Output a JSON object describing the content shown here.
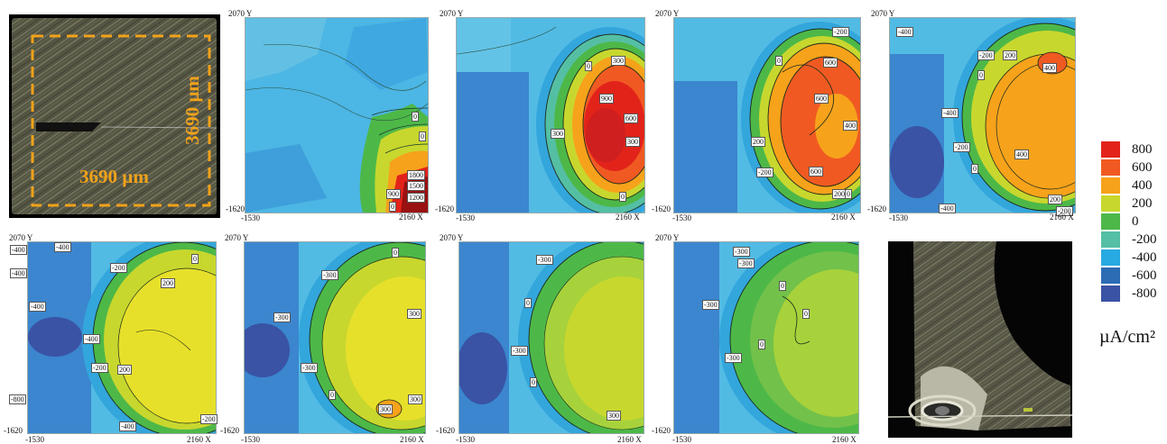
{
  "photo_labels": {
    "width": "3690 µm",
    "height": "3690 µm"
  },
  "corners": {
    "y_top": "2070 Y",
    "y_bottom": "-1620",
    "x_left": "-1530",
    "x_right": "2160 X"
  },
  "maps": [
    {
      "labels": [
        "0",
        "0",
        "1800",
        "1500",
        "1200",
        "900",
        "0"
      ]
    },
    {
      "labels": [
        "300",
        "0",
        "900",
        "600",
        "300",
        "300",
        "0"
      ]
    },
    {
      "labels": [
        "-200",
        "0",
        "600",
        "600",
        "400",
        "200",
        "-200",
        "600",
        "200",
        "0"
      ]
    },
    {
      "labels": [
        "-400",
        "-200",
        "200",
        "0",
        "400",
        "-400",
        "-200",
        "0",
        "400",
        "200",
        "-400",
        "-200"
      ]
    },
    {
      "labels": [
        "-400",
        "-400",
        "-200",
        "0",
        "-400",
        "200",
        "-400",
        "-400",
        "200",
        "-200",
        "-800",
        "-200",
        "-400"
      ]
    },
    {
      "labels": [
        "0",
        "-300",
        "-300",
        "300",
        "-300",
        "0",
        "300",
        "300"
      ]
    },
    {
      "labels": [
        "-300",
        "0",
        "-300",
        "0",
        "300"
      ]
    },
    {
      "labels": [
        "-300",
        "-300",
        "0",
        "-300",
        "0",
        "-300",
        "0"
      ]
    }
  ],
  "colorbar": {
    "labels": [
      "800",
      "600",
      "400",
      "200",
      "0",
      "-200",
      "-400",
      "-600",
      "-800"
    ],
    "colors": [
      "#e2231a",
      "#f05a22",
      "#f7a21b",
      "#c8d72e",
      "#4db848",
      "#55bfa4",
      "#27aae1",
      "#2c6cb5",
      "#3a53a4"
    ],
    "unit": "µA/cm²"
  }
}
